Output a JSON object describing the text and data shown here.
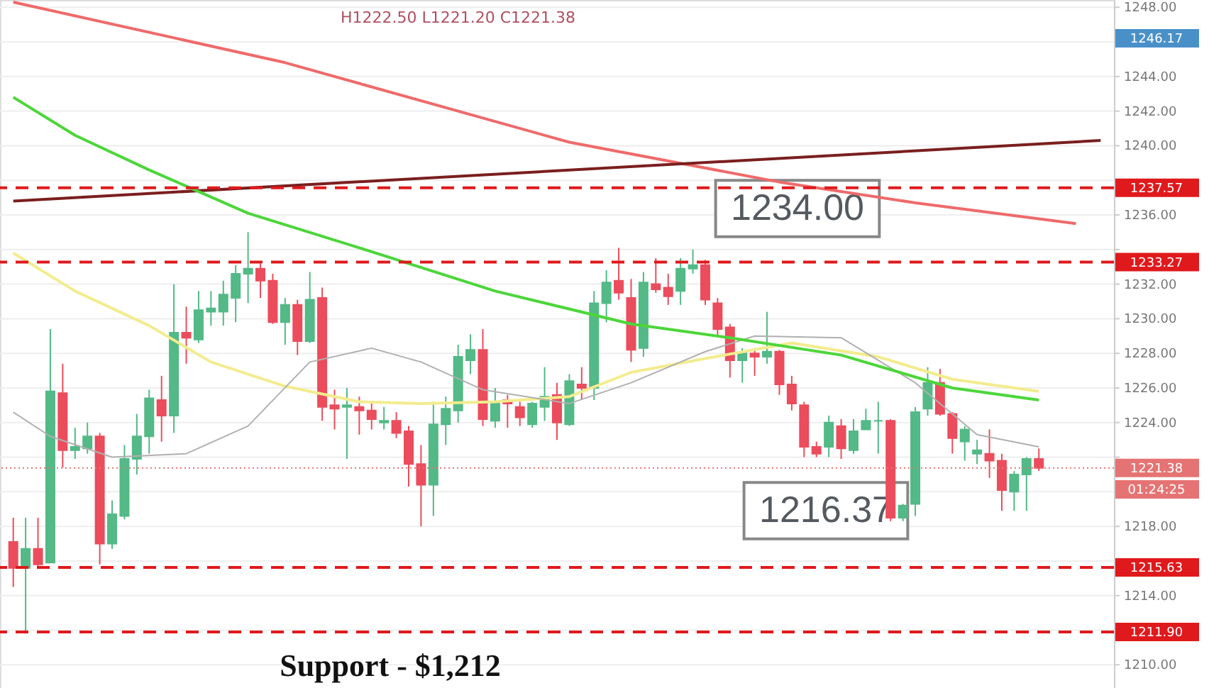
{
  "chart_data": {
    "type": "candlestick",
    "categories": [
      null,
      null,
      null,
      null,
      null,
      null,
      null,
      null,
      null,
      null,
      null,
      null,
      null,
      null,
      null,
      null,
      null,
      null,
      null,
      null,
      null,
      null,
      null,
      null,
      null,
      null,
      null,
      null,
      null,
      null,
      null,
      null,
      null,
      null,
      null,
      null,
      null,
      null,
      null,
      null,
      null,
      null,
      null,
      null,
      null,
      null,
      null,
      null,
      null,
      null,
      null,
      null,
      null,
      null,
      null,
      null,
      null,
      null,
      null,
      null,
      null,
      null,
      null,
      null,
      null,
      null,
      null,
      null,
      null,
      null,
      null,
      null,
      null,
      null,
      null,
      null,
      null,
      null,
      null,
      null,
      null,
      null,
      null,
      null,
      null,
      null,
      null,
      null,
      null
    ],
    "ylim": [
      1208.66,
      1248.42
    ],
    "yticks": [
      {
        "value": 1210,
        "label": "1210.00"
      },
      {
        "value": 1212,
        "label": null
      },
      {
        "value": 1214,
        "label": "1214.00"
      },
      {
        "value": 1216,
        "label": null
      },
      {
        "value": 1218,
        "label": "1218.00"
      },
      {
        "value": 1220,
        "label": null
      },
      {
        "value": 1222,
        "label": null
      },
      {
        "value": 1224,
        "label": "1224.00"
      },
      {
        "value": 1226,
        "label": "1226.00"
      },
      {
        "value": 1228,
        "label": "1228.00"
      },
      {
        "value": 1230,
        "label": "1230.00"
      },
      {
        "value": 1232,
        "label": "1232.00"
      },
      {
        "value": 1234,
        "label": null
      },
      {
        "value": 1236,
        "label": "1236.00"
      },
      {
        "value": 1238,
        "label": null
      },
      {
        "value": 1240,
        "label": "1240.00"
      },
      {
        "value": 1242,
        "label": "1242.00"
      },
      {
        "value": 1244,
        "label": "1244.00"
      },
      {
        "value": 1246,
        "label": null
      },
      {
        "value": 1248,
        "label": "1248.00"
      }
    ],
    "tick_labels": "y",
    "grid": "y",
    "series": [
      {
        "type": "candlestick",
        "ohlc": [
          [
            1217.1,
            1218.5,
            1214.5,
            1215.6
          ],
          [
            1215.6,
            1218.5,
            1211.8,
            1216.7
          ],
          [
            1216.7,
            1218.5,
            1215.6,
            1215.8
          ],
          [
            1215.9,
            1229.4,
            1215.9,
            1225.8
          ],
          [
            1225.7,
            1227.4,
            1221.4,
            1222.4
          ],
          [
            1222.4,
            1223.7,
            1221.9,
            1222.6
          ],
          [
            1222.5,
            1224.0,
            1222.2,
            1223.2
          ],
          [
            1223.2,
            1223.4,
            1215.8,
            1217.0
          ],
          [
            1217.0,
            1219.5,
            1216.7,
            1218.7
          ],
          [
            1218.6,
            1222.7,
            1218.4,
            1221.9
          ],
          [
            1221.9,
            1224.5,
            1221.0,
            1223.2
          ],
          [
            1223.2,
            1225.9,
            1222.2,
            1225.4
          ],
          [
            1225.3,
            1226.7,
            1222.9,
            1224.4
          ],
          [
            1224.4,
            1232.0,
            1223.4,
            1229.2
          ],
          [
            1229.2,
            1230.7,
            1227.4,
            1228.9
          ],
          [
            1228.8,
            1231.6,
            1228.6,
            1230.5
          ],
          [
            1230.4,
            1231.6,
            1229.6,
            1230.6
          ],
          [
            1230.4,
            1232.2,
            1229.6,
            1231.4
          ],
          [
            1231.2,
            1233.1,
            1229.8,
            1232.6
          ],
          [
            1232.6,
            1235.0,
            1230.9,
            1232.9
          ],
          [
            1232.9,
            1233.2,
            1231.2,
            1232.2
          ],
          [
            1232.2,
            1232.6,
            1229.7,
            1229.8
          ],
          [
            1229.8,
            1231.2,
            1228.5,
            1230.8
          ],
          [
            1230.8,
            1231.1,
            1227.9,
            1228.7
          ],
          [
            1228.7,
            1232.7,
            1228.6,
            1231.1
          ],
          [
            1231.2,
            1231.8,
            1224.1,
            1224.9
          ],
          [
            1225.0,
            1225.9,
            1223.6,
            1224.8
          ],
          [
            1224.9,
            1226.0,
            1221.9,
            1225.0
          ],
          [
            1224.9,
            1225.5,
            1223.3,
            1224.7
          ],
          [
            1224.7,
            1225.1,
            1223.6,
            1224.2
          ],
          [
            1224.0,
            1224.9,
            1223.6,
            1224.1
          ],
          [
            1224.1,
            1224.6,
            1223.1,
            1223.4
          ],
          [
            1223.5,
            1223.8,
            1220.3,
            1221.6
          ],
          [
            1221.6,
            1222.7,
            1218.0,
            1220.4
          ],
          [
            1220.4,
            1225.2,
            1218.6,
            1223.9
          ],
          [
            1223.9,
            1225.5,
            1222.7,
            1224.8
          ],
          [
            1224.7,
            1228.5,
            1224.0,
            1227.8
          ],
          [
            1227.6,
            1229.1,
            1226.8,
            1228.2
          ],
          [
            1228.2,
            1229.4,
            1223.8,
            1224.2
          ],
          [
            1224.1,
            1226.0,
            1223.7,
            1225.2
          ],
          [
            1225.3,
            1225.6,
            1223.7,
            1225.1
          ],
          [
            1224.9,
            1225.2,
            1223.8,
            1224.3
          ],
          [
            1223.9,
            1225.2,
            1223.7,
            1225.1
          ],
          [
            1224.9,
            1227.2,
            1224.1,
            1225.5
          ],
          [
            1225.6,
            1226.3,
            1223.0,
            1224.0
          ],
          [
            1223.9,
            1226.8,
            1223.8,
            1226.4
          ],
          [
            1226.2,
            1227.2,
            1225.3,
            1226.0
          ],
          [
            1226.0,
            1231.6,
            1225.3,
            1230.9
          ],
          [
            1230.9,
            1232.8,
            1229.8,
            1232.1
          ],
          [
            1232.2,
            1234.1,
            1231.1,
            1231.5
          ],
          [
            1231.2,
            1232.3,
            1227.5,
            1228.2
          ],
          [
            1228.3,
            1232.7,
            1227.8,
            1232.1
          ],
          [
            1232.0,
            1233.5,
            1231.5,
            1231.7
          ],
          [
            1231.8,
            1232.6,
            1230.8,
            1231.3
          ],
          [
            1231.6,
            1233.5,
            1230.8,
            1232.9
          ],
          [
            1232.9,
            1234.0,
            1232.6,
            1233.1
          ],
          [
            1233.1,
            1233.4,
            1230.8,
            1231.1
          ],
          [
            1230.9,
            1231.2,
            1229.0,
            1229.4
          ],
          [
            1229.5,
            1229.7,
            1226.6,
            1227.6
          ],
          [
            1227.6,
            1228.3,
            1226.3,
            1228.0
          ],
          [
            1228.0,
            1228.3,
            1226.7,
            1227.8
          ],
          [
            1227.8,
            1230.4,
            1227.4,
            1228.1
          ],
          [
            1228.1,
            1228.2,
            1225.6,
            1226.2
          ],
          [
            1226.2,
            1226.7,
            1224.7,
            1225.1
          ],
          [
            1225.0,
            1225.2,
            1222.0,
            1222.6
          ],
          [
            1222.6,
            1222.9,
            1222.0,
            1222.2
          ],
          [
            1222.6,
            1224.4,
            1222.0,
            1224.0
          ],
          [
            1223.8,
            1224.2,
            1221.9,
            1222.5
          ],
          [
            1222.4,
            1224.2,
            1222.2,
            1223.5
          ],
          [
            1223.6,
            1224.8,
            1223.6,
            1224.1
          ],
          [
            1224.1,
            1225.2,
            1222.2,
            1224.1
          ],
          [
            1224.1,
            1224.2,
            1218.3,
            1218.5
          ],
          [
            1218.5,
            1219.3,
            1218.3,
            1219.2
          ],
          [
            1219.3,
            1224.9,
            1218.6,
            1224.6
          ],
          [
            1224.8,
            1227.2,
            1224.4,
            1226.3
          ],
          [
            1226.3,
            1227.1,
            1224.4,
            1224.5
          ],
          [
            1224.5,
            1224.6,
            1222.2,
            1223.1
          ],
          [
            1222.9,
            1223.8,
            1221.8,
            1223.6
          ],
          [
            1222.2,
            1223.0,
            1221.6,
            1222.4
          ],
          [
            1222.2,
            1223.6,
            1220.8,
            1221.8
          ],
          [
            1221.8,
            1222.2,
            1218.9,
            1220.1
          ],
          [
            1220.0,
            1221.2,
            1218.9,
            1221.0
          ],
          [
            1221.0,
            1222.0,
            1218.9,
            1221.9
          ],
          [
            1221.9,
            1222.5,
            1221.2,
            1221.38
          ],
          null,
          null,
          null,
          null,
          null
        ],
        "colors": [
          "#eb4d5c",
          "#53b987",
          "#eb4d5c",
          "#53b987",
          "#eb4d5c",
          "#53b987",
          "#53b987",
          "#eb4d5c",
          "#53b987",
          "#53b987",
          "#53b987",
          "#53b987",
          "#eb4d5c",
          "#53b987",
          "#eb4d5c",
          "#53b987",
          "#53b987",
          "#53b987",
          "#53b987",
          "#53b987",
          "#eb4d5c",
          "#eb4d5c",
          "#53b987",
          "#eb4d5c",
          "#53b987",
          "#eb4d5c",
          "#eb4d5c",
          "#53b987",
          "#eb4d5c",
          "#eb4d5c",
          "#53b987",
          "#eb4d5c",
          "#eb4d5c",
          "#eb4d5c",
          "#53b987",
          "#53b987",
          "#53b987",
          "#53b987",
          "#eb4d5c",
          "#53b987",
          "#eb4d5c",
          "#eb4d5c",
          "#53b987",
          "#53b987",
          "#eb4d5c",
          "#53b987",
          "#eb4d5c",
          "#53b987",
          "#53b987",
          "#eb4d5c",
          "#eb4d5c",
          "#53b987",
          "#eb4d5c",
          "#eb4d5c",
          "#53b987",
          "#53b987",
          "#eb4d5c",
          "#eb4d5c",
          "#eb4d5c",
          "#53b987",
          "#eb4d5c",
          "#53b987",
          "#eb4d5c",
          "#eb4d5c",
          "#eb4d5c",
          "#eb4d5c",
          "#53b987",
          "#eb4d5c",
          "#53b987",
          "#53b987",
          "#53b987",
          "#eb4d5c",
          "#53b987",
          "#53b987",
          "#53b987",
          "#eb4d5c",
          "#eb4d5c",
          "#53b987",
          "#53b987",
          "#eb4d5c",
          "#eb4d5c",
          "#53b987",
          "#53b987",
          "#eb4d5c",
          null,
          null,
          null,
          null,
          null
        ]
      },
      {
        "type": "line",
        "color": "#ef6a6a",
        "values": [
          1248.3,
          null,
          null,
          null,
          null,
          null,
          null,
          null,
          null,
          null,
          null,
          null,
          null,
          null,
          null,
          null,
          null,
          null,
          null,
          null,
          null,
          null,
          1244.8,
          null,
          null,
          null,
          null,
          null,
          null,
          null,
          null,
          null,
          null,
          null,
          null,
          null,
          null,
          null,
          null,
          null,
          null,
          null,
          null,
          null,
          null,
          1240.2,
          null,
          null,
          null,
          null,
          null,
          null,
          null,
          null,
          null,
          null,
          null,
          null,
          null,
          null,
          null,
          null,
          1237.9,
          null,
          null,
          null,
          null,
          null,
          null,
          null,
          null,
          null,
          null,
          1236.7,
          null,
          null,
          null,
          null,
          null,
          null,
          null,
          null,
          null,
          null,
          null,
          null,
          1235.5,
          null,
          null
        ]
      },
      {
        "type": "line",
        "color": "#7a1f1f",
        "values": [
          1236.8,
          null,
          null,
          null,
          null,
          null,
          null,
          null,
          null,
          null,
          null,
          null,
          null,
          null,
          null,
          null,
          null,
          null,
          null,
          null,
          null,
          null,
          null,
          null,
          null,
          null,
          null,
          null,
          null,
          null,
          null,
          null,
          null,
          null,
          null,
          null,
          null,
          null,
          null,
          null,
          null,
          null,
          null,
          null,
          null,
          null,
          null,
          null,
          null,
          null,
          null,
          null,
          null,
          null,
          null,
          null,
          null,
          null,
          null,
          null,
          null,
          null,
          null,
          null,
          null,
          null,
          null,
          null,
          null,
          null,
          null,
          null,
          null,
          null,
          null,
          null,
          null,
          null,
          null,
          null,
          null,
          null,
          null,
          null,
          null,
          null,
          null,
          null,
          1240.3
        ]
      },
      {
        "type": "line",
        "color": "#f3ec8e",
        "values": [
          1233.8,
          null,
          null,
          null,
          null,
          1231.6,
          null,
          null,
          null,
          null,
          null,
          1229.6,
          null,
          null,
          null,
          null,
          1227.5,
          null,
          null,
          null,
          null,
          null,
          1226.1,
          null,
          null,
          null,
          null,
          null,
          1225.2,
          null,
          null,
          null,
          null,
          1225.1,
          null,
          null,
          null,
          null,
          null,
          1225.2,
          null,
          null,
          null,
          null,
          null,
          1225.5,
          null,
          null,
          null,
          null,
          1226.9,
          null,
          null,
          null,
          null,
          null,
          1227.7,
          null,
          null,
          null,
          null,
          null,
          null,
          1228.6,
          null,
          null,
          null,
          null,
          null,
          null,
          1227.8,
          null,
          null,
          null,
          null,
          null,
          1226.5,
          null,
          null,
          null,
          null,
          null,
          null,
          1225.8,
          null,
          null,
          null,
          null,
          null
        ]
      },
      {
        "type": "line",
        "color": "#b0b0b0",
        "values": [
          1224.6,
          null,
          null,
          1223.2,
          null,
          null,
          null,
          null,
          1222.0,
          null,
          null,
          null,
          null,
          null,
          1222.2,
          null,
          null,
          null,
          null,
          1223.8,
          null,
          null,
          null,
          null,
          1227.5,
          null,
          null,
          null,
          null,
          1228.3,
          null,
          null,
          null,
          1227.5,
          null,
          null,
          null,
          null,
          1225.9,
          null,
          null,
          null,
          null,
          null,
          null,
          1225.1,
          null,
          null,
          null,
          null,
          1226.3,
          null,
          null,
          null,
          null,
          null,
          1228.1,
          null,
          null,
          null,
          1229.0,
          null,
          null,
          null,
          null,
          null,
          null,
          1228.9,
          null,
          null,
          null,
          null,
          null,
          1226.3,
          null,
          null,
          null,
          null,
          1223.3,
          null,
          null,
          null,
          null,
          1222.6,
          null,
          null,
          null,
          null,
          null
        ]
      },
      {
        "type": "line",
        "color": "#4cd63a",
        "values": [
          1242.8,
          null,
          null,
          null,
          null,
          1240.6,
          null,
          null,
          null,
          null,
          null,
          1238.6,
          null,
          null,
          null,
          null,
          null,
          null,
          null,
          1236.1,
          null,
          null,
          null,
          null,
          null,
          null,
          null,
          null,
          1234.1,
          null,
          null,
          null,
          null,
          null,
          null,
          null,
          null,
          null,
          null,
          1231.6,
          null,
          null,
          null,
          null,
          null,
          null,
          null,
          null,
          null,
          null,
          1229.7,
          null,
          null,
          null,
          null,
          null,
          null,
          null,
          1228.9,
          null,
          null,
          null,
          null,
          null,
          null,
          null,
          null,
          1227.9,
          null,
          null,
          null,
          null,
          null,
          null,
          null,
          null,
          1226.0,
          null,
          null,
          null,
          null,
          null,
          null,
          1225.3,
          null,
          null,
          null,
          null,
          null
        ]
      }
    ],
    "ref_lines": [
      {
        "axis": "y",
        "value": 1237.57,
        "label": "1237.57",
        "color": "#e0191c",
        "line_style": "dashed"
      },
      {
        "axis": "y",
        "value": 1233.27,
        "label": "1233.27",
        "color": "#e0191c",
        "line_style": "dashed"
      },
      {
        "axis": "y",
        "value": 1215.63,
        "label": "1215.63",
        "color": "#e0191c",
        "line_style": "dashed"
      },
      {
        "axis": "y",
        "value": 1211.9,
        "label": "1211.90",
        "color": "#e0191c",
        "line_style": "dashed"
      },
      {
        "axis": "y",
        "value": 1221.38,
        "label": "1221.38",
        "color": "#e57373",
        "line_style": "dotted"
      }
    ],
    "annotations": [
      "1234.00",
      "1216.37",
      {
        "text": "Support - $1,212",
        "y": 1211.9
      },
      "1246.17",
      "01:24:25",
      "H1222.50  L1221.20  C1221.38"
    ]
  }
}
